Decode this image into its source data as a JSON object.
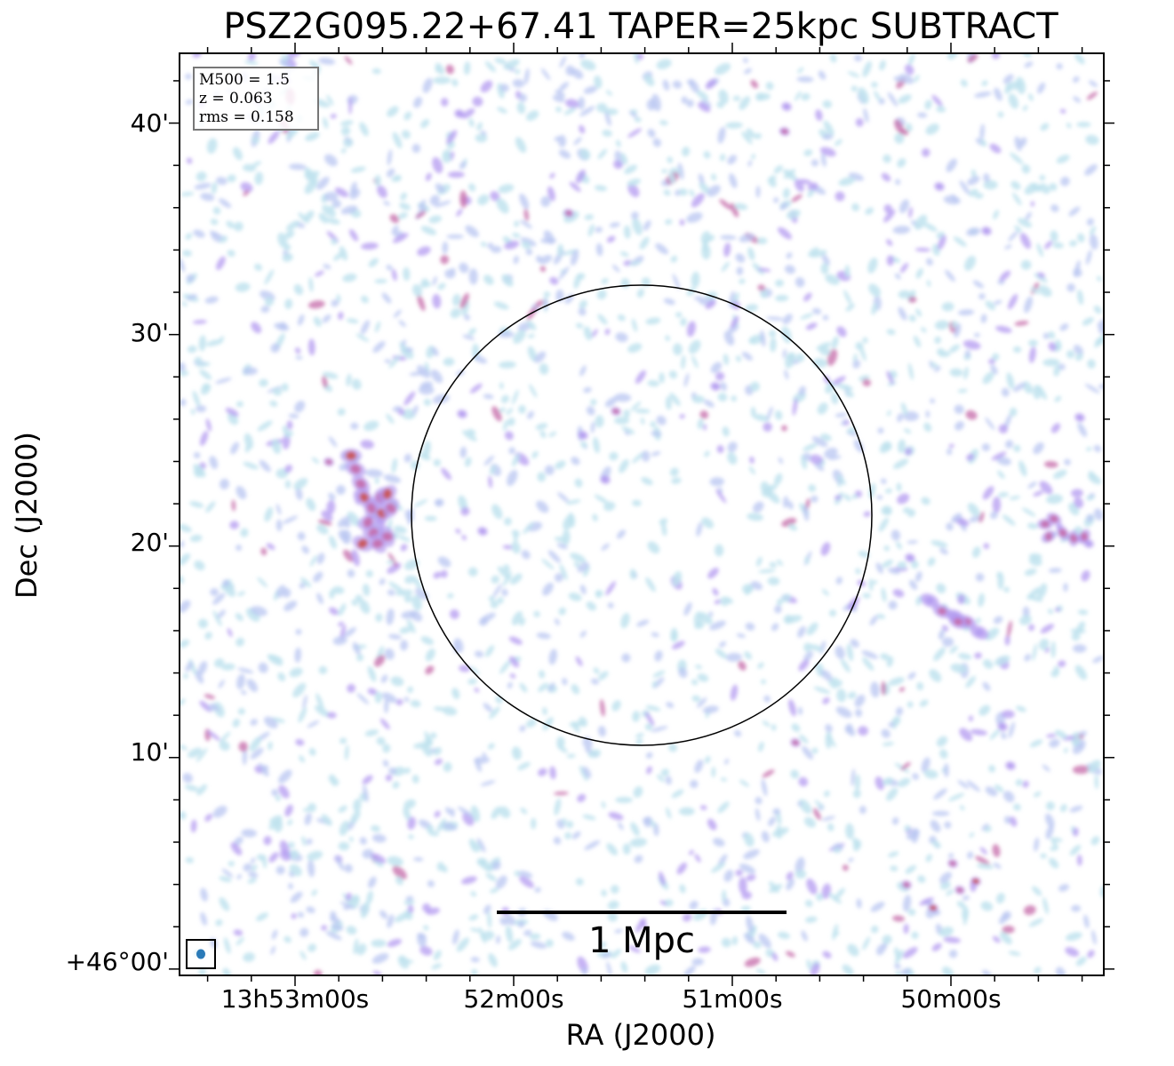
{
  "chart_data": {
    "type": "heatmap",
    "title": "PSZ2G095.22+67.41 TAPER=25kpc SUBTRACT",
    "xlabel": "RA (J2000)",
    "ylabel": "Dec (J2000)",
    "x_ticks": [
      "13h53m00s",
      "52m00s",
      "51m00s",
      "50m00s"
    ],
    "y_ticks": [
      "+46°00'",
      "10'",
      "20'",
      "30'",
      "40'"
    ],
    "y_range_arcmin": [
      -0.3,
      43.3
    ],
    "info": {
      "line1": "M500 = 1.5",
      "line2": "z = 0.063",
      "line3": "rms = 0.158"
    },
    "scale_bar_label": "1 Mpc",
    "colormap": [
      "#bfe3ee",
      "#b8c6f2",
      "#b39af0",
      "#c46aa8",
      "#c9514f"
    ],
    "background": "#ffffff"
  }
}
